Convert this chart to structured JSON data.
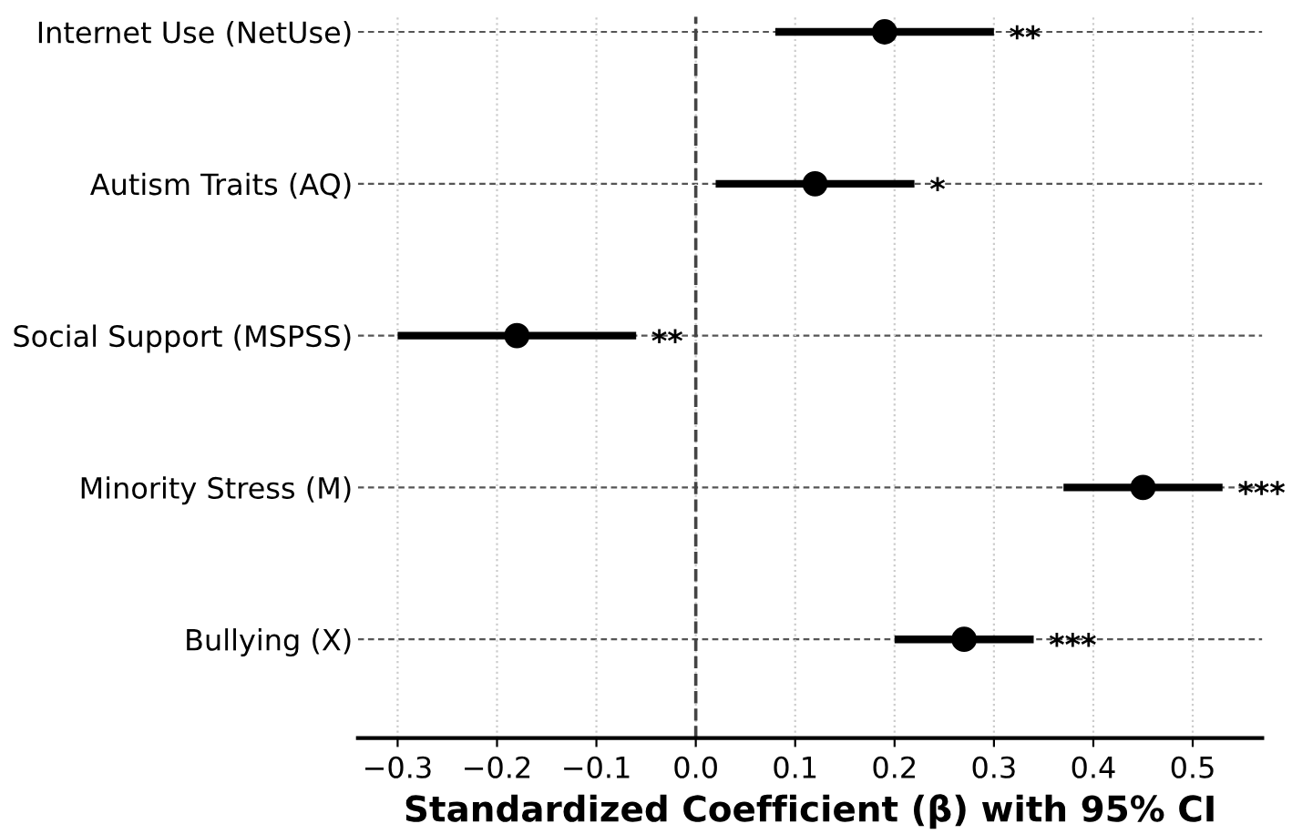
{
  "chart_data": {
    "type": "scatter",
    "orientation": "horizontal",
    "xlabel": "Standardized Coefficient (β) with 95% CI",
    "categories": [
      "Internet Use (NetUse)",
      "Autism Traits (AQ)",
      "Social Support (MSPSS)",
      "Minority Stress (M)",
      "Bullying (X)"
    ],
    "series": [
      {
        "color": "#000000",
        "values": [
          0.19,
          0.12,
          -0.18,
          0.45,
          0.27
        ],
        "errors": [
          [
            0.08,
            0.3
          ],
          [
            0.02,
            0.22
          ],
          [
            -0.3,
            -0.06
          ],
          [
            0.37,
            0.53
          ],
          [
            0.2,
            0.34
          ]
        ]
      }
    ],
    "marker": "circle",
    "line_style": "solid",
    "xlim": [
      -0.34,
      0.57
    ],
    "xticks": [
      {
        "value": -0.3,
        "label": "−0.3"
      },
      {
        "value": -0.2,
        "label": "−0.2"
      },
      {
        "value": -0.1,
        "label": "−0.1"
      },
      {
        "value": 0.0,
        "label": "0.0"
      },
      {
        "value": 0.1,
        "label": "0.1"
      },
      {
        "value": 0.2,
        "label": "0.2"
      },
      {
        "value": 0.3,
        "label": "0.3"
      },
      {
        "value": 0.4,
        "label": "0.4"
      },
      {
        "value": 0.5,
        "label": "0.5"
      }
    ],
    "grid": true,
    "ref_lines": [
      {
        "axis": "x",
        "value": 0,
        "color": "#444444",
        "line_style": "dashed"
      }
    ],
    "annotations": [
      "**",
      "*",
      "**",
      "***",
      "***"
    ]
  }
}
